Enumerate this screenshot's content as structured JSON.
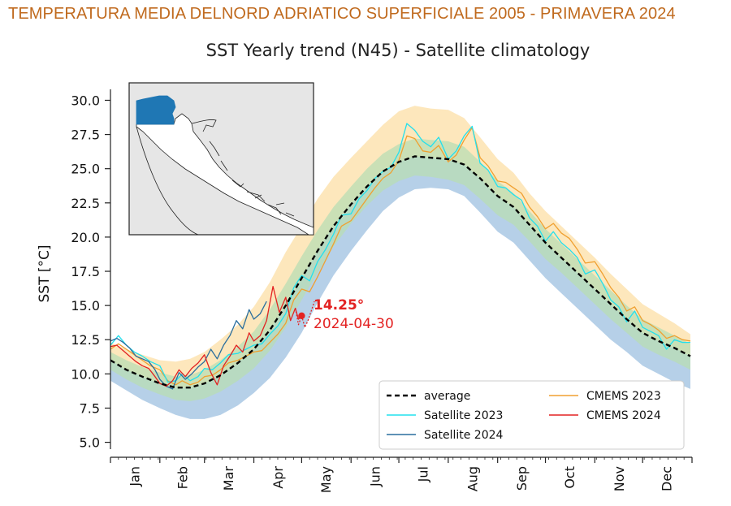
{
  "banner": "TEMPERATURA MEDIA DELNORD ADRIATICO SUPERFICIALE 2005 - PRIMAVERA 2024",
  "chart_data": {
    "type": "line",
    "title": "SST Yearly trend (N45) - Satellite climatology",
    "xlabel": "",
    "ylabel": "SST [°C]",
    "ylim": [
      4.5,
      30.8
    ],
    "xlim": [
      0,
      365
    ],
    "grid": false,
    "legend_position": "bottom-right",
    "y_ticks": [
      "5.0",
      "7.5",
      "10.0",
      "12.5",
      "15.0",
      "17.5",
      "20.0",
      "22.5",
      "25.0",
      "27.5",
      "30.0"
    ],
    "y_tick_values": [
      5.0,
      7.5,
      10.0,
      12.5,
      15.0,
      17.5,
      20.0,
      22.5,
      25.0,
      27.5,
      30.0
    ],
    "months": [
      "Jan",
      "Feb",
      "Mar",
      "Apr",
      "May",
      "Jun",
      "Jul",
      "Aug",
      "Sep",
      "Oct",
      "Nov",
      "Dec"
    ],
    "month_mid_day": [
      15,
      45,
      74,
      105,
      135,
      166,
      196,
      227,
      258,
      288,
      319,
      349
    ],
    "month_start_day": [
      0,
      31,
      59,
      90,
      120,
      151,
      181,
      212,
      243,
      273,
      304,
      334,
      365
    ],
    "colors": {
      "average": "#000000",
      "satellite_2023": "#22e0ee",
      "satellite_2024": "#2a6e9e",
      "cmems_2023": "#f0a030",
      "cmems_2024": "#e32222",
      "band_upper": "#fde3b0",
      "band_mid": "#b8ddb4",
      "band_lower": "#a9c8e4",
      "inset_sea": "#1f77b4"
    },
    "annotation": {
      "value_label": "14.25°",
      "date_label": "2024-04-30",
      "x": 120,
      "y": 14.25
    },
    "series": [
      {
        "name": "average",
        "style": "dashed",
        "x": [
          0,
          10,
          20,
          31,
          41,
          50,
          59,
          69,
          80,
          90,
          100,
          110,
          120,
          130,
          140,
          151,
          161,
          171,
          181,
          191,
          201,
          212,
          222,
          232,
          243,
          253,
          263,
          273,
          283,
          293,
          304,
          314,
          324,
          334,
          344,
          354,
          364
        ],
        "values": [
          11.0,
          10.3,
          9.8,
          9.3,
          9.0,
          9.0,
          9.3,
          9.9,
          10.8,
          11.8,
          13.2,
          15.0,
          17.0,
          19.0,
          20.8,
          22.4,
          23.7,
          24.8,
          25.5,
          25.9,
          25.8,
          25.7,
          25.3,
          24.3,
          23.0,
          22.2,
          20.9,
          19.6,
          18.5,
          17.4,
          16.2,
          15.1,
          14.0,
          13.0,
          12.4,
          11.9,
          11.3
        ]
      },
      {
        "name": "Satellite 2023",
        "x": [
          0,
          5,
          10,
          15,
          20,
          25,
          31,
          36,
          41,
          45,
          50,
          55,
          59,
          64,
          69,
          74,
          80,
          85,
          90,
          95,
          100,
          105,
          110,
          115,
          120,
          125,
          130,
          135,
          140,
          145,
          151,
          156,
          161,
          166,
          171,
          176,
          181,
          186,
          191,
          196,
          201,
          206,
          212,
          217,
          222,
          227,
          232,
          237,
          243,
          248,
          253,
          258,
          263,
          268,
          273,
          278,
          283,
          288,
          293,
          298,
          304,
          309,
          314,
          319,
          324,
          329,
          334,
          339,
          344,
          349,
          354,
          359,
          364
        ],
        "values": [
          12.1,
          12.8,
          12.1,
          11.6,
          11.3,
          10.9,
          10.6,
          9.4,
          9.5,
          10.0,
          9.5,
          9.8,
          10.4,
          10.3,
          10.8,
          11.4,
          11.5,
          11.8,
          12.1,
          12.2,
          12.9,
          13.5,
          14.4,
          16.3,
          17.2,
          16.8,
          18.2,
          19.1,
          20.2,
          21.6,
          21.7,
          22.8,
          23.4,
          24.3,
          24.8,
          25.1,
          26.2,
          28.3,
          27.8,
          27.0,
          26.6,
          27.3,
          25.7,
          26.3,
          27.4,
          28.1,
          25.4,
          24.9,
          23.7,
          23.6,
          23.1,
          22.7,
          21.4,
          20.8,
          19.7,
          20.4,
          19.6,
          19.1,
          18.5,
          17.3,
          17.6,
          16.6,
          15.4,
          14.9,
          13.8,
          14.6,
          13.4,
          13.1,
          12.8,
          11.8,
          12.5,
          12.3,
          12.3
        ]
      },
      {
        "name": "Satellite 2024",
        "x": [
          0,
          4,
          8,
          12,
          16,
          20,
          24,
          28,
          31,
          35,
          39,
          43,
          47,
          51,
          55,
          59,
          63,
          67,
          71,
          75,
          79,
          83,
          87,
          90,
          94,
          98
        ],
        "values": [
          12.4,
          12.6,
          12.3,
          11.9,
          11.3,
          11.1,
          10.9,
          10.3,
          9.6,
          9.1,
          8.9,
          10.1,
          9.6,
          10.0,
          10.5,
          10.9,
          11.8,
          11.1,
          12.1,
          12.8,
          13.9,
          13.3,
          14.7,
          14.0,
          14.4,
          15.3
        ]
      },
      {
        "name": "CMEMS 2023",
        "x": [
          0,
          5,
          10,
          15,
          20,
          25,
          31,
          36,
          41,
          45,
          50,
          55,
          59,
          64,
          69,
          74,
          80,
          85,
          90,
          95,
          100,
          105,
          110,
          115,
          120,
          125,
          130,
          135,
          140,
          145,
          151,
          156,
          161,
          166,
          171,
          176,
          181,
          186,
          191,
          196,
          201,
          206,
          212,
          217,
          222,
          227,
          232,
          237,
          243,
          248,
          253,
          258,
          263,
          268,
          273,
          278,
          283,
          288,
          293,
          298,
          304,
          309,
          314,
          319,
          324,
          329,
          334,
          339,
          344,
          349,
          354,
          359,
          364
        ],
        "values": [
          11.8,
          12.2,
          11.8,
          11.4,
          11.0,
          10.6,
          10.3,
          9.5,
          9.2,
          9.5,
          9.2,
          9.4,
          9.8,
          9.9,
          10.3,
          10.8,
          11.0,
          11.3,
          11.6,
          11.7,
          12.3,
          12.9,
          13.7,
          15.4,
          16.2,
          16.0,
          17.1,
          18.3,
          19.5,
          20.8,
          21.2,
          22.0,
          22.8,
          23.6,
          24.3,
          24.7,
          25.6,
          27.4,
          27.2,
          26.3,
          26.2,
          26.7,
          25.5,
          26.0,
          27.1,
          28.0,
          25.8,
          25.2,
          24.1,
          24.0,
          23.6,
          23.2,
          22.2,
          21.5,
          20.6,
          21.0,
          20.3,
          19.9,
          19.1,
          18.1,
          18.2,
          17.3,
          16.3,
          15.6,
          14.6,
          14.9,
          13.9,
          13.6,
          13.2,
          12.6,
          12.8,
          12.5,
          12.4
        ]
      },
      {
        "name": "CMEMS 2024",
        "x": [
          0,
          4,
          8,
          12,
          16,
          20,
          24,
          28,
          31,
          35,
          39,
          43,
          47,
          51,
          55,
          59,
          63,
          67,
          71,
          75,
          79,
          83,
          87,
          90,
          94,
          98,
          102,
          106,
          110,
          113,
          116,
          118,
          120
        ],
        "values": [
          12.0,
          12.1,
          11.7,
          11.3,
          10.9,
          10.6,
          10.4,
          9.8,
          9.3,
          9.1,
          9.5,
          10.3,
          9.8,
          10.4,
          10.8,
          11.4,
          10.1,
          9.2,
          10.6,
          11.3,
          12.1,
          11.6,
          13.0,
          12.4,
          12.8,
          13.9,
          16.4,
          14.5,
          15.6,
          13.9,
          14.8,
          14.0,
          14.25
        ]
      },
      {
        "name": "CMEMS 2024 (dotted)",
        "style": "dotted",
        "x": [
          116,
          118,
          120,
          122,
          124,
          126,
          128
        ],
        "values": [
          14.8,
          13.6,
          14.25,
          13.4,
          13.9,
          14.6,
          15.3
        ]
      }
    ],
    "band_x": [
      0,
      10,
      20,
      31,
      41,
      50,
      59,
      69,
      80,
      90,
      100,
      110,
      120,
      130,
      140,
      151,
      161,
      171,
      181,
      191,
      201,
      212,
      222,
      232,
      243,
      253,
      263,
      273,
      283,
      293,
      304,
      314,
      324,
      334,
      344,
      354,
      364
    ],
    "band_top": [
      12.3,
      11.8,
      11.4,
      11.0,
      10.9,
      11.1,
      11.6,
      12.5,
      13.6,
      14.9,
      16.7,
      18.9,
      20.8,
      22.8,
      24.4,
      25.8,
      27.0,
      28.2,
      29.2,
      29.6,
      29.4,
      29.3,
      28.7,
      27.3,
      25.7,
      24.7,
      23.2,
      21.9,
      20.8,
      19.7,
      18.5,
      17.3,
      16.2,
      15.1,
      14.4,
      13.7,
      12.9
    ],
    "band_q_high": [
      11.6,
      11.0,
      10.5,
      10.1,
      9.8,
      9.9,
      10.3,
      11.0,
      12.0,
      13.1,
      14.7,
      16.6,
      18.6,
      20.5,
      22.2,
      23.7,
      25.0,
      26.1,
      26.8,
      27.2,
      27.1,
      27.0,
      26.6,
      25.5,
      24.1,
      23.2,
      21.9,
      20.6,
      19.5,
      18.4,
      17.2,
      16.1,
      15.0,
      14.0,
      13.4,
      12.8,
      12.2
    ],
    "band_q_low": [
      10.3,
      9.6,
      9.0,
      8.5,
      8.1,
      8.0,
      8.2,
      8.7,
      9.5,
      10.4,
      11.7,
      13.4,
      15.4,
      17.4,
      19.3,
      21.0,
      22.3,
      23.4,
      24.1,
      24.5,
      24.4,
      24.2,
      23.8,
      22.8,
      21.6,
      20.9,
      19.7,
      18.4,
      17.4,
      16.3,
      15.1,
      14.0,
      13.0,
      12.0,
      11.4,
      10.9,
      10.3
    ],
    "band_bottom": [
      9.5,
      8.8,
      8.1,
      7.5,
      7.0,
      6.7,
      6.7,
      7.0,
      7.7,
      8.6,
      9.7,
      11.2,
      13.0,
      15.2,
      17.2,
      19.0,
      20.5,
      21.9,
      22.9,
      23.5,
      23.6,
      23.5,
      23.0,
      21.8,
      20.4,
      19.6,
      18.3,
      17.0,
      15.9,
      14.8,
      13.6,
      12.5,
      11.6,
      10.6,
      10.0,
      9.4,
      8.9
    ]
  }
}
